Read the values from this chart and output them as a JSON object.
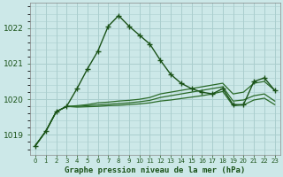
{
  "background_color": "#cce8e8",
  "grid_color": "#aacece",
  "line_color_main": "#1a5218",
  "line_color_flat": "#2a6a28",
  "title": "Graphe pression niveau de la mer (hPa)",
  "yticks": [
    1019,
    1020,
    1021,
    1022
  ],
  "ylim": [
    1018.45,
    1022.7
  ],
  "xlim": [
    -0.5,
    23.5
  ],
  "series1_x": [
    0,
    1,
    2,
    3,
    4,
    5,
    6,
    7,
    8,
    9,
    10,
    11,
    12,
    13,
    14,
    15,
    16,
    17,
    18,
    19,
    20,
    21,
    22,
    23
  ],
  "series1_y": [
    1018.7,
    1019.1,
    1019.65,
    1019.8,
    1020.3,
    1020.85,
    1021.35,
    1022.05,
    1022.35,
    1022.05,
    1021.8,
    1021.55,
    1021.1,
    1020.7,
    1020.45,
    1020.3,
    1020.2,
    1020.15,
    1020.3,
    1019.85,
    1019.85,
    1020.5,
    1020.6,
    1020.25
  ],
  "series2_x": [
    0,
    1,
    2,
    3,
    4,
    5,
    6,
    7,
    8,
    9,
    10,
    11,
    12,
    13,
    14,
    15,
    16,
    17,
    18,
    19,
    20,
    21,
    22,
    23
  ],
  "series2_y": [
    1018.7,
    1019.1,
    1019.65,
    1019.8,
    1019.82,
    1019.85,
    1019.9,
    1019.92,
    1019.95,
    1019.97,
    1020.0,
    1020.05,
    1020.15,
    1020.2,
    1020.25,
    1020.3,
    1020.35,
    1020.4,
    1020.45,
    1020.15,
    1020.2,
    1020.45,
    1020.5,
    1020.25
  ],
  "series3_x": [
    0,
    1,
    2,
    3,
    4,
    5,
    6,
    7,
    8,
    9,
    10,
    11,
    12,
    13,
    14,
    15,
    16,
    17,
    18,
    19,
    20,
    21,
    22,
    23
  ],
  "series3_y": [
    1018.7,
    1019.1,
    1019.65,
    1019.8,
    1019.8,
    1019.82,
    1019.84,
    1019.86,
    1019.88,
    1019.9,
    1019.93,
    1019.97,
    1020.05,
    1020.1,
    1020.15,
    1020.2,
    1020.25,
    1020.3,
    1020.35,
    1019.95,
    1019.98,
    1020.1,
    1020.15,
    1019.95
  ],
  "series4_x": [
    0,
    1,
    2,
    3,
    4,
    5,
    6,
    7,
    8,
    9,
    10,
    11,
    12,
    13,
    14,
    15,
    16,
    17,
    18,
    19,
    20,
    21,
    22,
    23
  ],
  "series4_y": [
    1018.7,
    1019.1,
    1019.65,
    1019.8,
    1019.78,
    1019.79,
    1019.8,
    1019.82,
    1019.83,
    1019.85,
    1019.87,
    1019.9,
    1019.95,
    1019.98,
    1020.02,
    1020.06,
    1020.1,
    1020.15,
    1020.22,
    1019.82,
    1019.84,
    1019.98,
    1020.03,
    1019.85
  ]
}
